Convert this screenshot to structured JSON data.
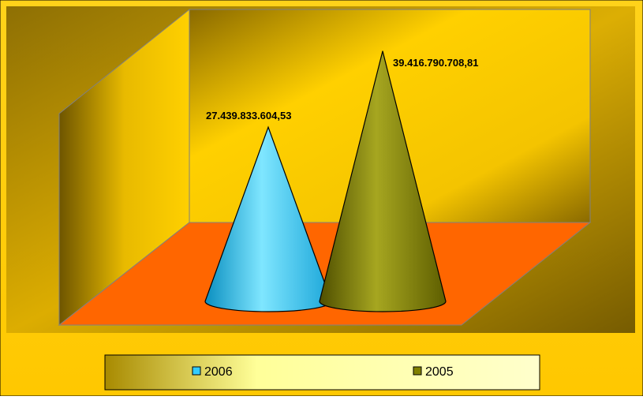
{
  "chart_data": {
    "type": "bar",
    "style": "3d-cone",
    "categories": [
      "2006",
      "2005"
    ],
    "values": [
      27439833604.53,
      39416790708.81
    ],
    "data_labels": [
      "27.439.833.604,53",
      "39.416.790.708,81"
    ],
    "title": "",
    "xlabel": "",
    "ylabel": "",
    "ylim": [
      0,
      40000000000
    ],
    "grid": false,
    "legend": {
      "position": "bottom",
      "entries": [
        "2006",
        "2005"
      ]
    },
    "colors": {
      "background": "#FFCC00",
      "back_wall": "#D9A800",
      "floor": "#FF6600",
      "series": [
        "#33CCFF",
        "#808000"
      ],
      "legend_box": "#FFFF99"
    }
  }
}
